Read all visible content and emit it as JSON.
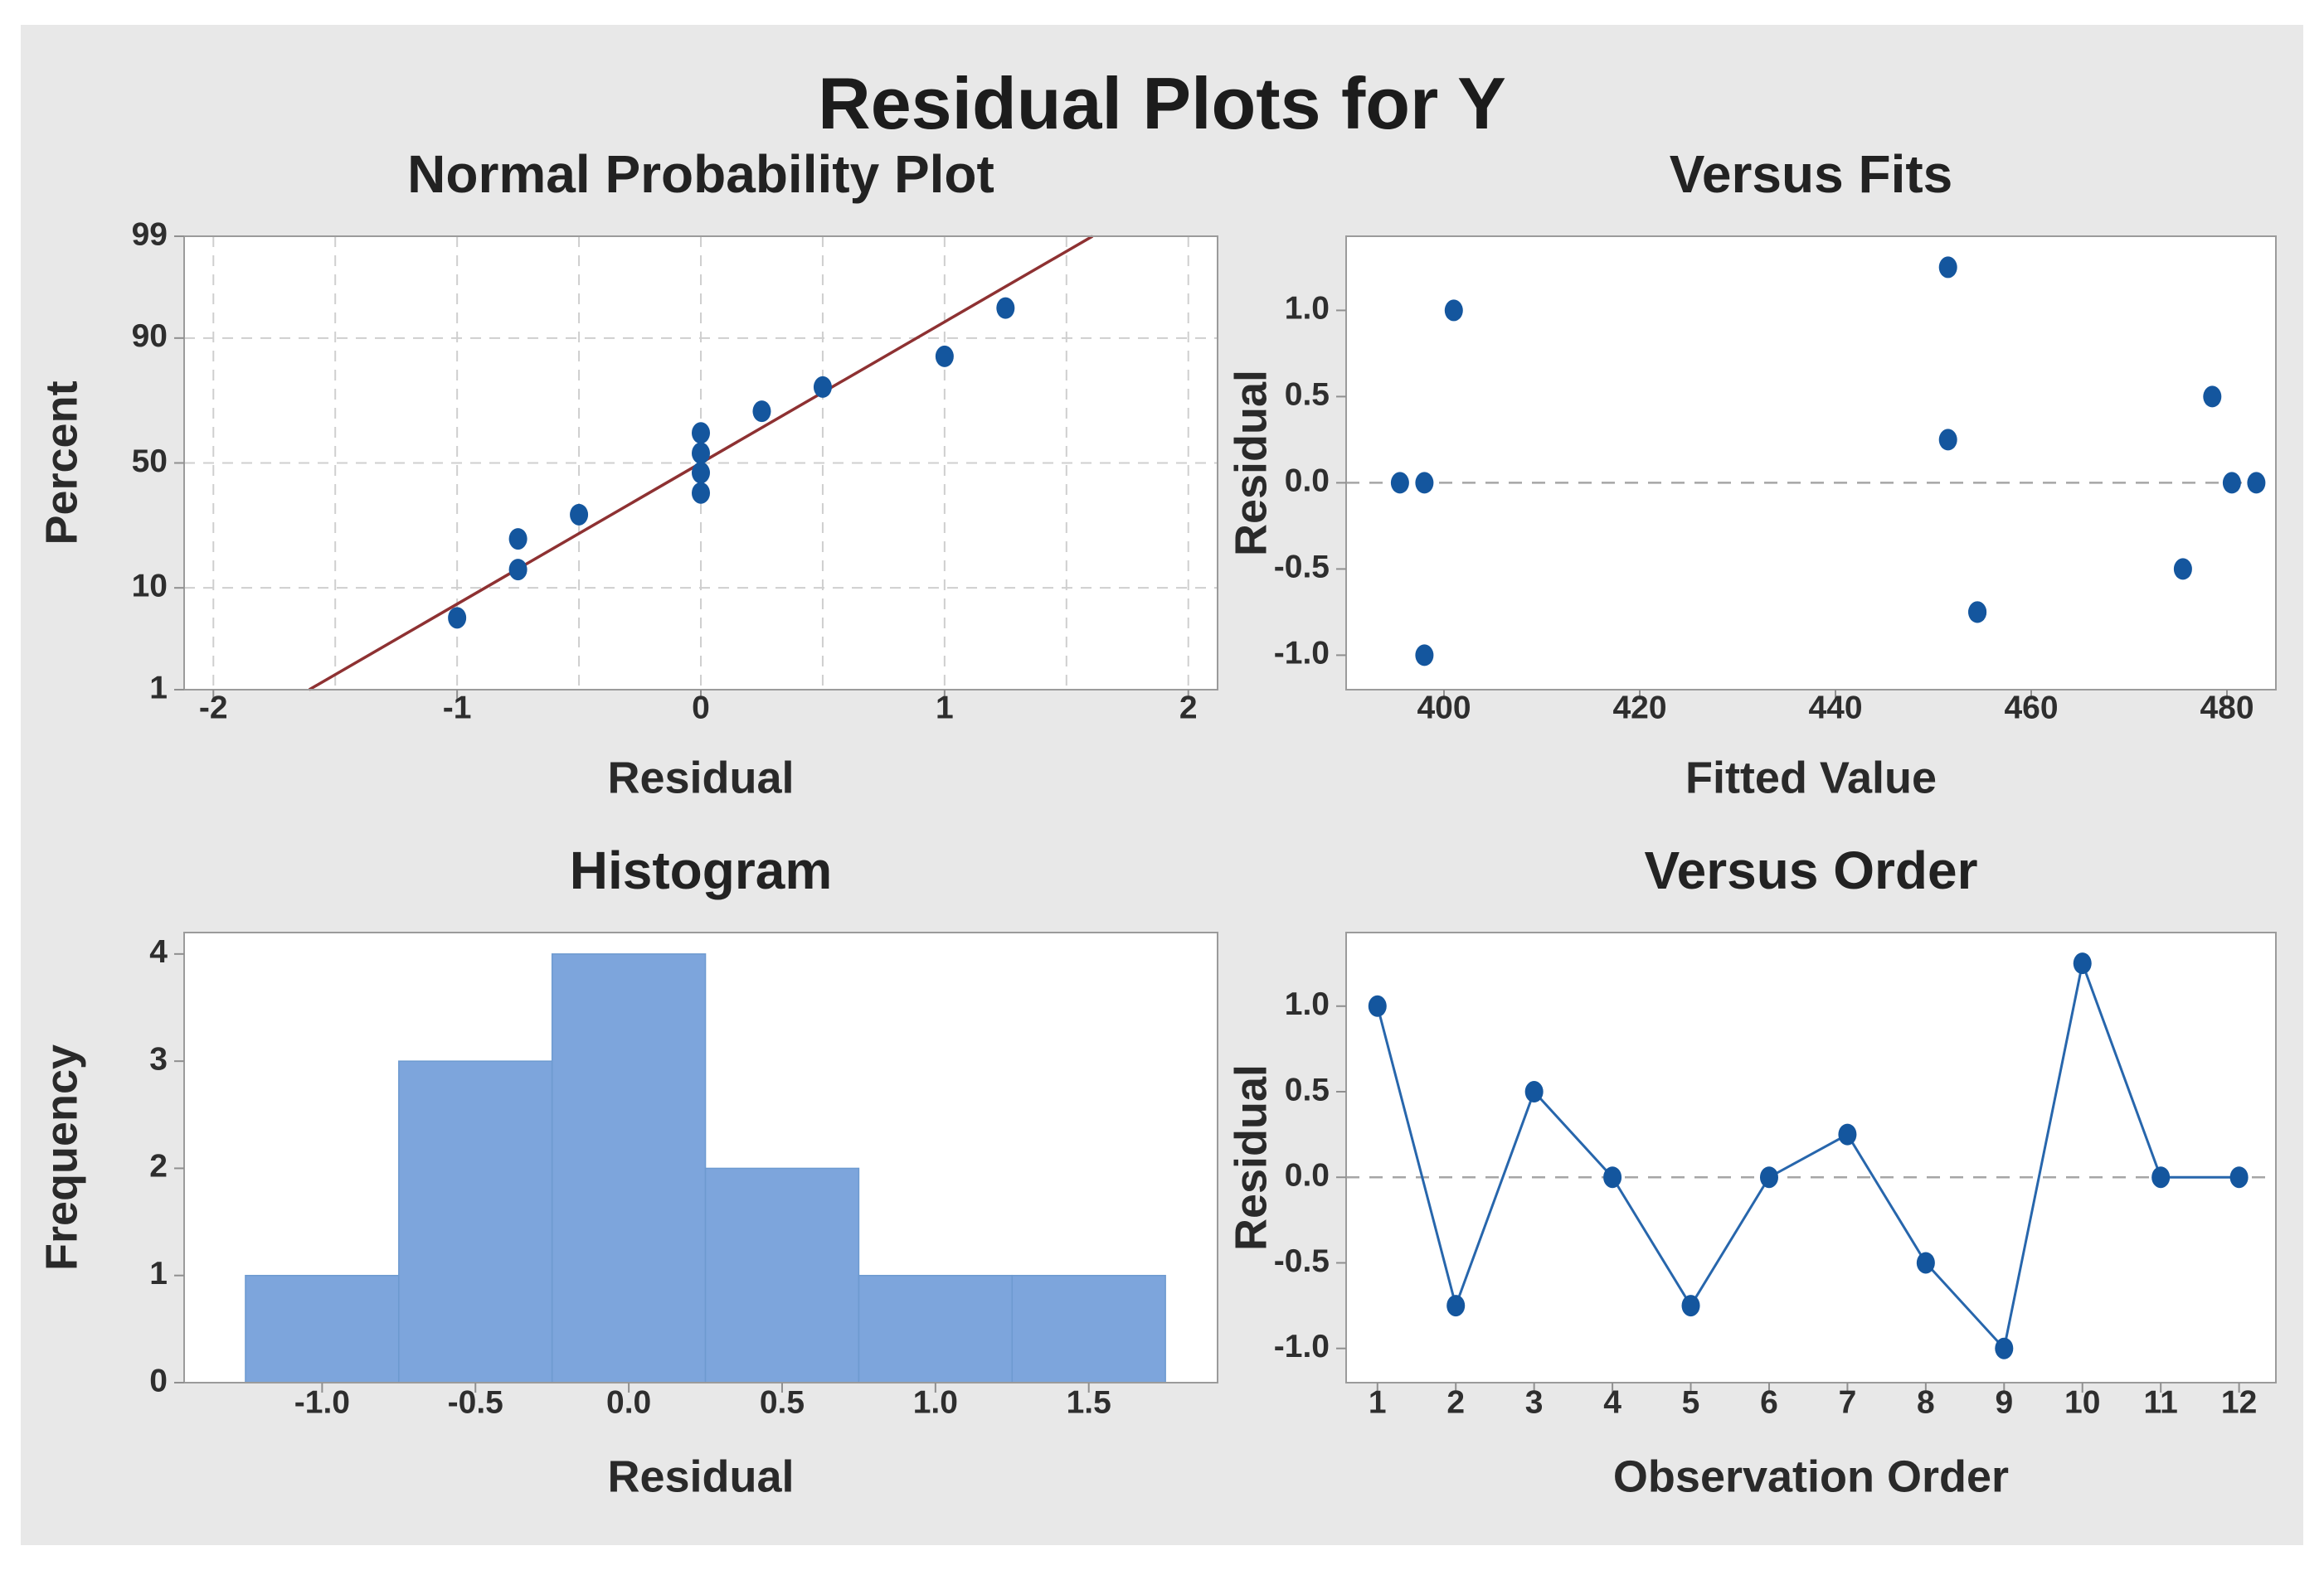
{
  "figure": {
    "title": "Residual Plots for Y"
  },
  "colors": {
    "page_bg": "#ffffff",
    "panel_bg": "#e8e8e8",
    "plot_bg": "#ffffff",
    "spine": "#9b9b9b",
    "tick": "#8f8f8f",
    "grid": "#cfcfcf",
    "zero_line": "#a6a6a6",
    "point": "#14569e",
    "series_line": "#2766ac",
    "fit_line": "#8e3132",
    "bar_fill": "#7da5dc",
    "bar_edge": "#6d9ad0",
    "text": "#2e2e2e",
    "title_text": "#1c1c1c"
  },
  "chart_data": [
    {
      "id": "npp",
      "type": "scatter",
      "title": "Normal Probability Plot",
      "xlabel": "Residual",
      "ylabel": "Percent",
      "y_scale": "probit",
      "xlim": [
        -2.12,
        2.12
      ],
      "ylim": [
        1,
        99
      ],
      "x_ticks": [
        -2,
        -1,
        0,
        1,
        2
      ],
      "x_tick_labels": [
        "-2",
        "-1",
        "0",
        "1",
        "2"
      ],
      "y_ticks": [
        1,
        10,
        50,
        90,
        99
      ],
      "y_tick_labels": [
        "1",
        "10",
        "50",
        "90",
        "99"
      ],
      "grid_x": [
        -2,
        -1.5,
        -1,
        -0.5,
        0,
        0.5,
        1,
        1.5,
        2
      ],
      "grid_y": [
        10,
        50,
        90
      ],
      "points": [
        [
          -1.0,
          5.6
        ],
        [
          -0.75,
          13.7
        ],
        [
          -0.75,
          21.8
        ],
        [
          -0.5,
          29.8
        ],
        [
          0,
          37.9
        ],
        [
          0,
          46.0
        ],
        [
          0,
          54.0
        ],
        [
          0,
          62.1
        ],
        [
          0.25,
          70.2
        ],
        [
          0.5,
          78.2
        ],
        [
          1.0,
          86.3
        ],
        [
          1.25,
          94.4
        ]
      ],
      "fit_line": {
        "x": [
          -1.607,
          1.607
        ],
        "percent": [
          1,
          99
        ]
      }
    },
    {
      "id": "vfits",
      "type": "scatter",
      "title": "Versus Fits",
      "xlabel": "Fitted Value",
      "ylabel": "Residual",
      "xlim": [
        390,
        485
      ],
      "ylim": [
        -1.2,
        1.43
      ],
      "x_ticks": [
        400,
        420,
        440,
        460,
        480
      ],
      "x_tick_labels": [
        "400",
        "420",
        "440",
        "460",
        "480"
      ],
      "y_ticks": [
        -1.0,
        -0.5,
        0.0,
        0.5,
        1.0
      ],
      "y_tick_labels": [
        "-1.0",
        "-0.5",
        "0.0",
        "0.5",
        "1.0"
      ],
      "zero_line": 0,
      "points": [
        [
          395.5,
          0
        ],
        [
          398,
          0
        ],
        [
          398,
          -1.0
        ],
        [
          401,
          1.0
        ],
        [
          451.5,
          1.25
        ],
        [
          451.5,
          0.25
        ],
        [
          454.5,
          -0.75
        ],
        [
          454.5,
          -0.75
        ],
        [
          475.5,
          -0.5
        ],
        [
          478.5,
          0.5
        ],
        [
          480.5,
          0
        ],
        [
          483,
          0
        ]
      ]
    },
    {
      "id": "hist",
      "type": "bar",
      "title": "Histogram",
      "xlabel": "Residual",
      "ylabel": "Frequency",
      "xlim": [
        -1.45,
        1.92
      ],
      "ylim": [
        0,
        4.2
      ],
      "bin_edges": [
        -1.25,
        -0.75,
        -0.25,
        0.25,
        0.75,
        1.25,
        1.75
      ],
      "counts": [
        1,
        3,
        4,
        2,
        1,
        1
      ],
      "x_ticks": [
        -1.0,
        -0.5,
        0.0,
        0.5,
        1.0,
        1.5
      ],
      "x_tick_labels": [
        "-1.0",
        "-0.5",
        "0.0",
        "0.5",
        "1.0",
        "1.5"
      ],
      "y_ticks": [
        0,
        1,
        2,
        3,
        4
      ],
      "y_tick_labels": [
        "0",
        "1",
        "2",
        "3",
        "4"
      ]
    },
    {
      "id": "vorder",
      "type": "line",
      "title": "Versus Order",
      "xlabel": "Observation Order",
      "ylabel": "Residual",
      "xlim": [
        0.6,
        12.47
      ],
      "ylim": [
        -1.2,
        1.43
      ],
      "x": [
        1,
        2,
        3,
        4,
        5,
        6,
        7,
        8,
        9,
        10,
        11,
        12
      ],
      "y": [
        1.0,
        -0.75,
        0.5,
        0.0,
        -0.75,
        0.0,
        0.25,
        -0.5,
        -1.0,
        1.25,
        0.0,
        0.0
      ],
      "x_ticks": [
        1,
        2,
        3,
        4,
        5,
        6,
        7,
        8,
        9,
        10,
        11,
        12
      ],
      "x_tick_labels": [
        "1",
        "2",
        "3",
        "4",
        "5",
        "6",
        "7",
        "8",
        "9",
        "10",
        "11",
        "12"
      ],
      "y_ticks": [
        -1.0,
        -0.5,
        0.0,
        0.5,
        1.0
      ],
      "y_tick_labels": [
        "-1.0",
        "-0.5",
        "0.0",
        "0.5",
        "1.0"
      ],
      "zero_line": 0
    }
  ]
}
